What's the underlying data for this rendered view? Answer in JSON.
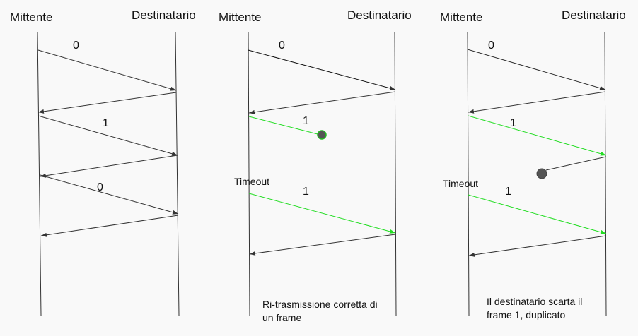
{
  "panels": [
    {
      "sender": "Mittente",
      "receiver": "Destinatario",
      "seq_labels": [
        "0",
        "1",
        "0"
      ],
      "timeout": null,
      "caption": null
    },
    {
      "sender": "Mittente",
      "receiver": "Destinatario",
      "seq_labels": [
        "0",
        "1",
        "1"
      ],
      "timeout": "Timeout",
      "caption": "Ri-trasmissione corretta di un frame"
    },
    {
      "sender": "Mittente",
      "receiver": "Destinatario",
      "seq_labels": [
        "0",
        "1",
        "1"
      ],
      "timeout": "Timeout",
      "caption": "Il destinatario scarta il frame 1, duplicato"
    }
  ],
  "colors": {
    "line": "#333333",
    "frame_green": "#22dd22",
    "lost_dot": "#555555",
    "lost_dot_border_green": "#22bb22"
  }
}
